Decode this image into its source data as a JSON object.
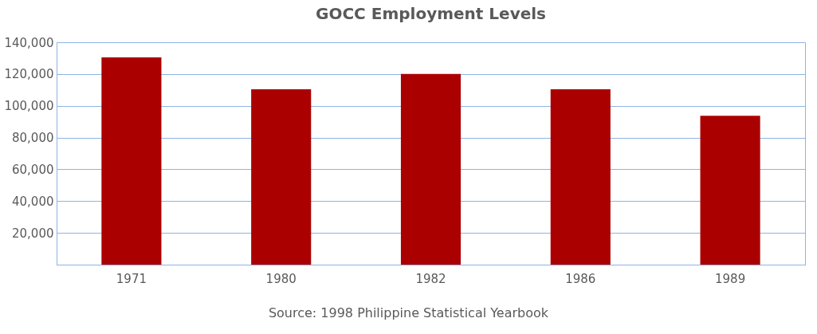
{
  "chart_data": {
    "type": "bar",
    "title": "GOCC Employment Levels",
    "categories": [
      "1971",
      "1980",
      "1982",
      "1986",
      "1989"
    ],
    "values": [
      130500,
      110400,
      120000,
      110400,
      93700
    ],
    "color": "#aa0000",
    "ylim": [
      0,
      140000
    ],
    "yticks": [
      {
        "value": 0,
        "label": null
      },
      {
        "value": 20000,
        "label": "20,000"
      },
      {
        "value": 40000,
        "label": "40,000"
      },
      {
        "value": 60000,
        "label": "60,000"
      },
      {
        "value": 80000,
        "label": "80,000"
      },
      {
        "value": 100000,
        "label": "100,000"
      },
      {
        "value": 120000,
        "label": "120,000"
      },
      {
        "value": 140000,
        "label": "140,000"
      }
    ],
    "grid": "y",
    "annotations": [
      "Source: 1998 Philippine Statistical Yearbook"
    ]
  }
}
